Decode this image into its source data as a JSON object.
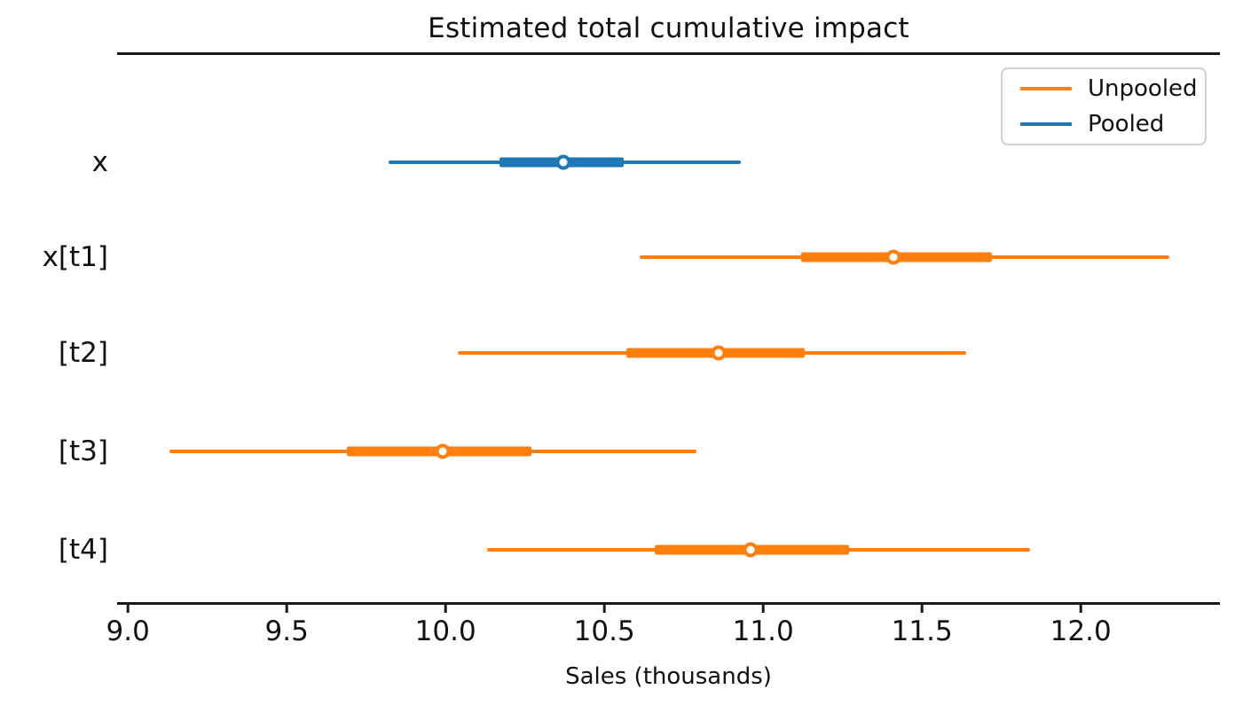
{
  "chart_data": {
    "type": "forest",
    "title": "Estimated total cumulative impact",
    "xlabel": "Sales (thousands)",
    "xlim": [
      8.966,
      12.438
    ],
    "xticks": [
      9.0,
      9.5,
      10.0,
      10.5,
      11.0,
      11.5,
      12.0
    ],
    "grid": false,
    "legend_position": "upper right",
    "legend": [
      {
        "label": "Unpooled",
        "color": "#ff7f0e"
      },
      {
        "label": "Pooled",
        "color": "#1f77b4"
      }
    ],
    "rows": [
      {
        "label": "x",
        "series": "Pooled",
        "color": "#1f77b4",
        "point": 10.37,
        "hdi_thick": [
          10.17,
          10.56
        ],
        "hdi_thin": [
          9.82,
          10.93
        ]
      },
      {
        "label": "x[t1]",
        "series": "Unpooled",
        "color": "#ff7f0e",
        "point": 11.41,
        "hdi_thick": [
          11.12,
          11.72
        ],
        "hdi_thin": [
          10.61,
          12.28
        ]
      },
      {
        "label": "[t2]",
        "series": "Unpooled",
        "color": "#ff7f0e",
        "point": 10.86,
        "hdi_thick": [
          10.57,
          11.13
        ],
        "hdi_thin": [
          10.04,
          11.64
        ]
      },
      {
        "label": "[t3]",
        "series": "Unpooled",
        "color": "#ff7f0e",
        "point": 9.99,
        "hdi_thick": [
          9.69,
          10.27
        ],
        "hdi_thin": [
          9.13,
          10.79
        ]
      },
      {
        "label": "[t4]",
        "series": "Unpooled",
        "color": "#ff7f0e",
        "point": 10.96,
        "hdi_thick": [
          10.66,
          11.27
        ],
        "hdi_thin": [
          10.13,
          11.84
        ]
      }
    ]
  }
}
